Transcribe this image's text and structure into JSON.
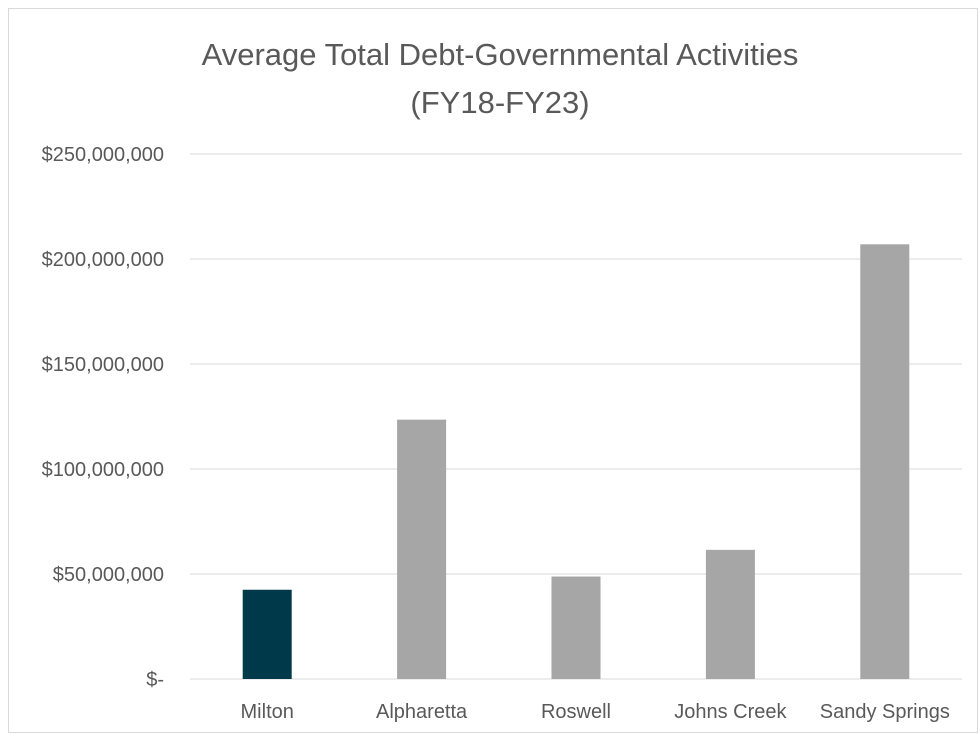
{
  "chart_data": {
    "type": "bar",
    "title_line1": "Average Total Debt-Governmental Activities",
    "title_line2": "(FY18-FY23)",
    "categories": [
      "Milton",
      "Alpharetta",
      "Roswell",
      "Johns Creek",
      "Sandy Springs"
    ],
    "values": [
      42500000,
      123500000,
      48800000,
      61500000,
      207000000
    ],
    "ylim": [
      0,
      250000000
    ],
    "ytick_values": [
      0,
      50000000,
      100000000,
      150000000,
      200000000,
      250000000
    ],
    "ytick_labels": [
      "$-",
      "$50,000,000",
      "$100,000,000",
      "$150,000,000",
      "$200,000,000",
      "$250,000,000"
    ],
    "grid": true,
    "legend": "none",
    "bar_colors": [
      "#003a4a",
      "#a6a6a6",
      "#a6a6a6",
      "#a6a6a6",
      "#a6a6a6"
    ],
    "gridline_color": "#d9d9d9",
    "text_color": "#595959"
  }
}
